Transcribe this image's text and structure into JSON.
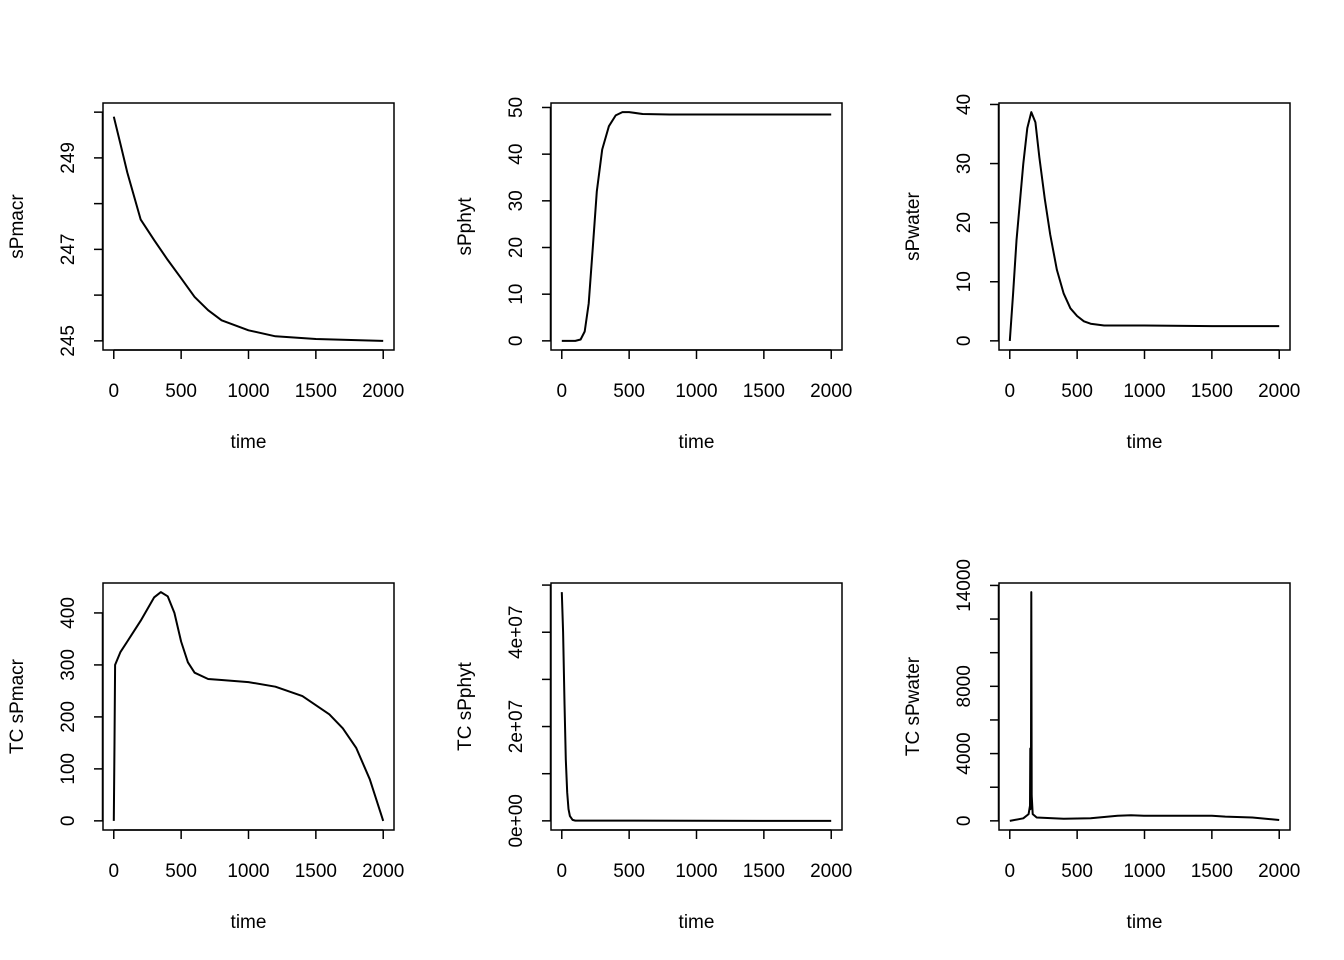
{
  "chart_data": [
    {
      "type": "line",
      "xlabel": "time",
      "ylabel": "sPmacr",
      "xlim": [
        0,
        2000
      ],
      "ylim": [
        245,
        250
      ],
      "xticks": [
        0,
        500,
        1000,
        1500,
        2000
      ],
      "xtick_labels": [
        "0",
        "500",
        "1000",
        "1500",
        "2000"
      ],
      "yticks": [
        245,
        246,
        247,
        248,
        249,
        250
      ],
      "ytick_labels": [
        "245",
        "",
        "247",
        "",
        "249",
        ""
      ],
      "x": [
        0,
        50,
        100,
        200,
        300,
        400,
        500,
        600,
        700,
        800,
        1000,
        1200,
        1500,
        2000
      ],
      "y": [
        249.9,
        249.3,
        248.68,
        247.65,
        247.2,
        246.77,
        246.37,
        245.96,
        245.67,
        245.45,
        245.23,
        245.1,
        245.04,
        245.0
      ]
    },
    {
      "type": "line",
      "xlabel": "time",
      "ylabel": "sPphyt",
      "xlim": [
        0,
        2000
      ],
      "ylim": [
        0,
        49
      ],
      "xticks": [
        0,
        500,
        1000,
        1500,
        2000
      ],
      "xtick_labels": [
        "0",
        "500",
        "1000",
        "1500",
        "2000"
      ],
      "yticks": [
        0,
        10,
        20,
        30,
        40,
        50
      ],
      "ytick_labels": [
        "0",
        "10",
        "20",
        "30",
        "40",
        "50"
      ],
      "x": [
        0,
        100,
        140,
        170,
        200,
        230,
        260,
        300,
        350,
        400,
        450,
        500,
        600,
        800,
        1000,
        2000
      ],
      "y": [
        0,
        0,
        0.3,
        2,
        8,
        20,
        32,
        41,
        46,
        48.3,
        49,
        49,
        48.6,
        48.5,
        48.5,
        48.5
      ]
    },
    {
      "type": "line",
      "xlabel": "time",
      "ylabel": "sPwater",
      "xlim": [
        0,
        2000
      ],
      "ylim": [
        0,
        38.7
      ],
      "xticks": [
        0,
        500,
        1000,
        1500,
        2000
      ],
      "xtick_labels": [
        "0",
        "500",
        "1000",
        "1500",
        "2000"
      ],
      "yticks": [
        0,
        10,
        20,
        30,
        40
      ],
      "ytick_labels": [
        "0",
        "10",
        "20",
        "30",
        "40"
      ],
      "x": [
        0,
        25,
        50,
        100,
        130,
        160,
        190,
        220,
        260,
        300,
        350,
        400,
        450,
        500,
        550,
        600,
        700,
        1000,
        1500,
        2000
      ],
      "y": [
        0,
        8,
        17,
        30,
        36,
        38.7,
        37,
        31,
        24,
        18,
        12,
        8,
        5.5,
        4.2,
        3.3,
        2.9,
        2.6,
        2.6,
        2.5,
        2.5
      ]
    },
    {
      "type": "line",
      "xlabel": "time",
      "ylabel": "TC sPmacr",
      "xlim": [
        0,
        2000
      ],
      "ylim": [
        0,
        440
      ],
      "xticks": [
        0,
        500,
        1000,
        1500,
        2000
      ],
      "xtick_labels": [
        "0",
        "500",
        "1000",
        "1500",
        "2000"
      ],
      "yticks": [
        0,
        100,
        200,
        300,
        400
      ],
      "ytick_labels": [
        "0",
        "100",
        "200",
        "300",
        "400"
      ],
      "x": [
        0,
        5,
        10,
        50,
        100,
        200,
        300,
        350,
        400,
        450,
        500,
        550,
        600,
        700,
        800,
        1000,
        1200,
        1400,
        1600,
        1700,
        1800,
        1900,
        2000
      ],
      "y": [
        0,
        150,
        300,
        325,
        345,
        385,
        430,
        440,
        432,
        400,
        345,
        305,
        285,
        273,
        271,
        267,
        258,
        240,
        205,
        178,
        140,
        80,
        0
      ]
    },
    {
      "type": "line",
      "xlabel": "time",
      "ylabel": "TC sPphyt",
      "xlim": [
        0,
        2000
      ],
      "ylim": [
        0,
        48500000
      ],
      "xticks": [
        0,
        500,
        1000,
        1500,
        2000
      ],
      "xtick_labels": [
        "0",
        "500",
        "1000",
        "1500",
        "2000"
      ],
      "yticks": [
        0,
        10000000,
        20000000,
        30000000,
        40000000,
        50000000
      ],
      "ytick_labels": [
        "0e+00",
        "",
        "2e+07",
        "",
        "4e+07",
        ""
      ],
      "x": [
        0,
        10,
        20,
        30,
        40,
        50,
        60,
        80,
        100,
        2000
      ],
      "y": [
        48500000,
        40000000,
        25000000,
        13000000,
        6000000,
        2500000,
        1000000,
        200000,
        50000,
        0
      ]
    },
    {
      "type": "line",
      "xlabel": "time",
      "ylabel": "TC sPwater",
      "xlim": [
        0,
        2000
      ],
      "ylim": [
        0,
        13600
      ],
      "xticks": [
        0,
        500,
        1000,
        1500,
        2000
      ],
      "xtick_labels": [
        "0",
        "500",
        "1000",
        "1500",
        "2000"
      ],
      "yticks": [
        0,
        2000,
        4000,
        6000,
        8000,
        10000,
        12000,
        14000
      ],
      "ytick_labels": [
        "0",
        "",
        "4000",
        "",
        "8000",
        "",
        "",
        "14000"
      ],
      "x": [
        0,
        100,
        140,
        150,
        152,
        154,
        157,
        160,
        163,
        170,
        200,
        400,
        600,
        800,
        900,
        1000,
        1500,
        1600,
        1800,
        2000
      ],
      "y": [
        0,
        150,
        400,
        900,
        4300,
        700,
        1000,
        13600,
        1500,
        400,
        200,
        120,
        150,
        300,
        330,
        300,
        300,
        250,
        200,
        50
      ]
    }
  ]
}
